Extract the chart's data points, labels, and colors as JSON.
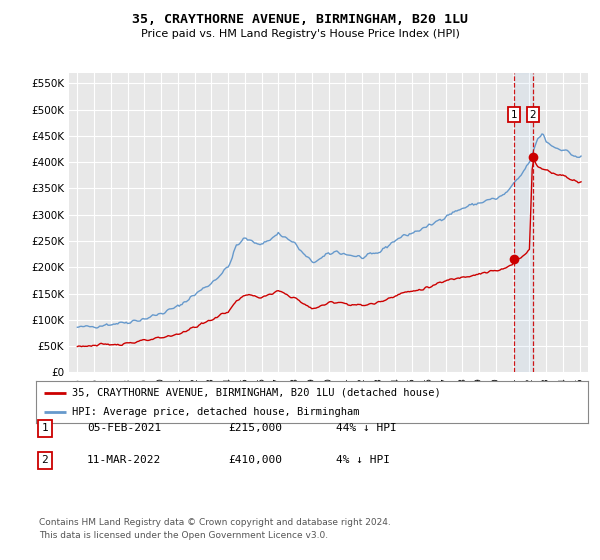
{
  "title": "35, CRAYTHORNE AVENUE, BIRMINGHAM, B20 1LU",
  "subtitle": "Price paid vs. HM Land Registry's House Price Index (HPI)",
  "background_color": "#ffffff",
  "plot_bg_color": "#e8e8e8",
  "grid_color": "#ffffff",
  "hpi_color": "#6699cc",
  "price_color": "#cc0000",
  "vline_color": "#cc0000",
  "marker_color": "#cc0000",
  "transaction1_x": 2021.08,
  "transaction1_y": 215000,
  "transaction2_x": 2022.19,
  "transaction2_y": 410000,
  "legend_label_price": "35, CRAYTHORNE AVENUE, BIRMINGHAM, B20 1LU (detached house)",
  "legend_label_hpi": "HPI: Average price, detached house, Birmingham",
  "footnote": "Contains HM Land Registry data © Crown copyright and database right 2024.\nThis data is licensed under the Open Government Licence v3.0.",
  "table_rows": [
    {
      "num": "1",
      "date": "05-FEB-2021",
      "price": "£215,000",
      "pct": "44% ↓ HPI"
    },
    {
      "num": "2",
      "date": "11-MAR-2022",
      "price": "£410,000",
      "pct": "4% ↓ HPI"
    }
  ],
  "ylim": [
    0,
    570000
  ],
  "xlim_left": 1994.5,
  "xlim_right": 2025.5,
  "yticks": [
    0,
    50000,
    100000,
    150000,
    200000,
    250000,
    300000,
    350000,
    400000,
    450000,
    500000,
    550000
  ],
  "ytick_labels": [
    "£0",
    "£50K",
    "£100K",
    "£150K",
    "£200K",
    "£250K",
    "£300K",
    "£350K",
    "£400K",
    "£450K",
    "£500K",
    "£550K"
  ]
}
